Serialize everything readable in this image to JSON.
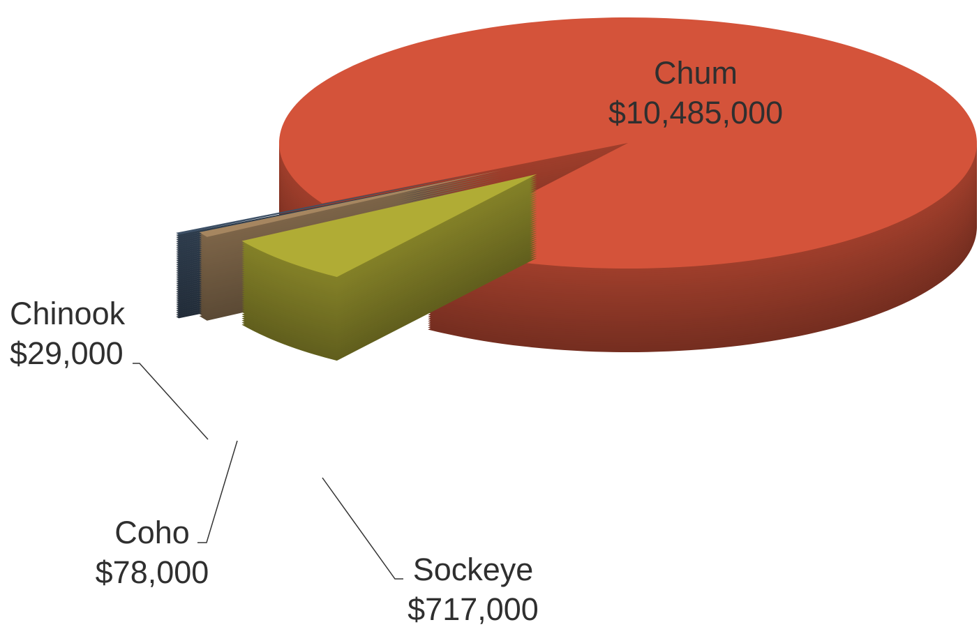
{
  "chart_data": {
    "type": "pie",
    "categories": [
      "Chum",
      "Sockeye",
      "Coho",
      "Chinook"
    ],
    "values": [
      10485000,
      717000,
      78000,
      29000
    ],
    "value_labels": [
      "$10,485,000",
      "$717,000",
      "$78,000",
      "$29,000"
    ],
    "colors": [
      "#d4533a",
      "#b0ac35",
      "#a68660",
      "#3d5066"
    ]
  }
}
